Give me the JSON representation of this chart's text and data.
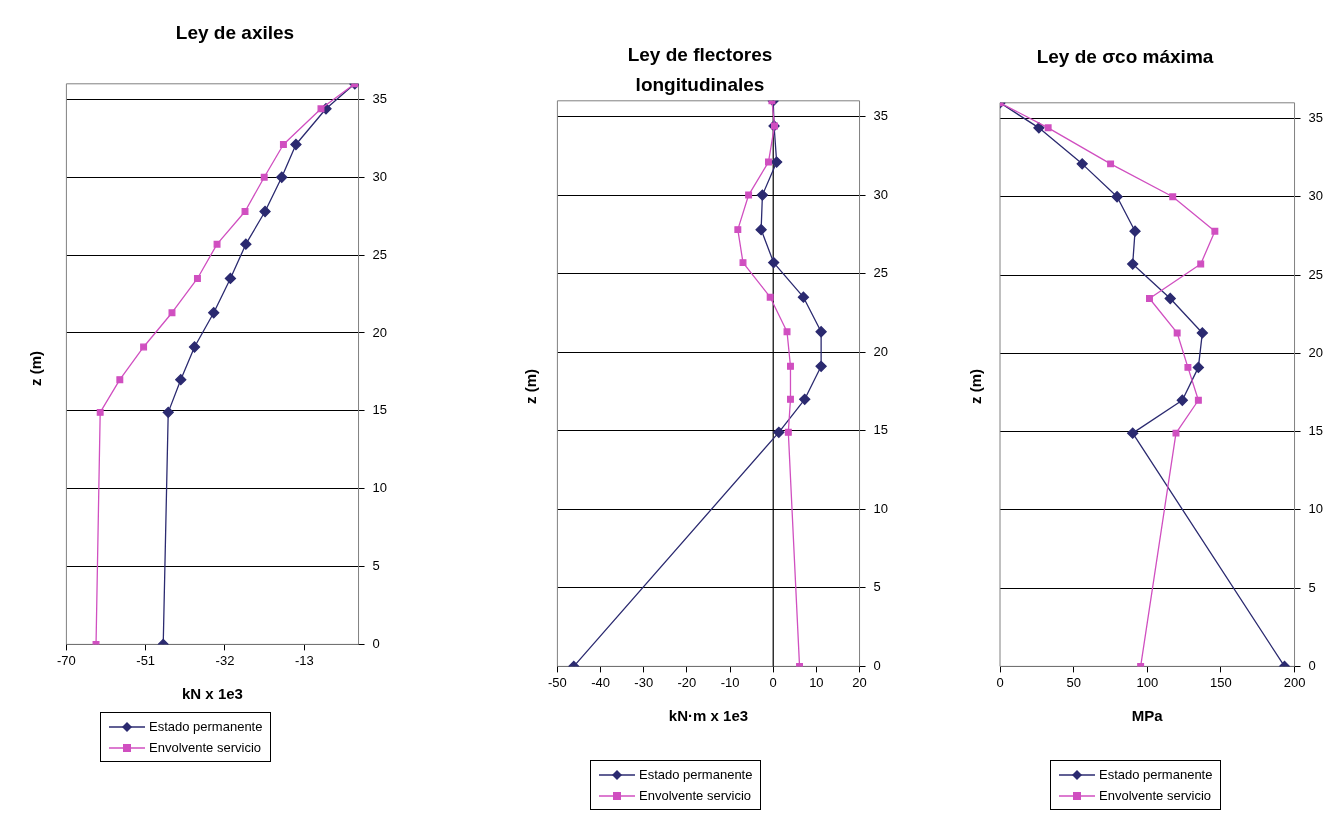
{
  "chart_data": [
    {
      "type": "line",
      "title": "Ley de axiles",
      "xlabel": "kN x 1e3",
      "ylabel": "z (m)",
      "xlim": [
        -70,
        0
      ],
      "xticks": [
        -70,
        -51,
        -32,
        -13
      ],
      "ylim": [
        0,
        36
      ],
      "yticks": [
        0,
        5,
        10,
        15,
        20,
        25,
        30,
        35
      ],
      "grid": "y",
      "legend": "bottom",
      "series": [
        {
          "name": "Estado permanente",
          "color": "#2b2a70",
          "marker": "diamond",
          "x": [
            -46.8,
            -45.6,
            -42.6,
            -39.3,
            -34.7,
            -30.7,
            -27.0,
            -22.4,
            -18.4,
            -15.0,
            -7.8,
            -0.9
          ],
          "values": [
            0,
            14.9,
            17,
            19.1,
            21.3,
            23.5,
            25.7,
            27.8,
            30,
            32.1,
            34.4,
            36
          ]
        },
        {
          "name": "Envolvente servicio",
          "color": "#d04fc0",
          "marker": "square",
          "x": [
            -62.9,
            -61.9,
            -57.2,
            -51.5,
            -44.7,
            -38.6,
            -33.9,
            -27.2,
            -22.6,
            -18.0,
            -9.0,
            -0.9
          ],
          "values": [
            0,
            14.9,
            17,
            19.1,
            21.3,
            23.5,
            25.7,
            27.8,
            30,
            32.1,
            34.4,
            36
          ]
        }
      ]
    },
    {
      "type": "line",
      "title": "Ley de flectores longitudinales",
      "xlabel": "kN·m x 1e3",
      "ylabel": "z (m)",
      "xlim": [
        -50,
        20
      ],
      "xticks": [
        -50,
        -40,
        -30,
        -20,
        -10,
        0,
        10,
        20
      ],
      "ylim": [
        0,
        36
      ],
      "yticks": [
        0,
        5,
        10,
        15,
        20,
        25,
        30,
        35
      ],
      "grid": "y",
      "legend": "bottom",
      "ref_lines": [
        {
          "axis": "x",
          "value": 0
        }
      ],
      "series": [
        {
          "name": "Estado permanente",
          "color": "#2b2a70",
          "marker": "diamond",
          "x": [
            -46.2,
            1.3,
            7.3,
            11.1,
            11.1,
            7.0,
            0.1,
            -2.8,
            -2.5,
            0.8,
            0.2,
            0
          ],
          "values": [
            0,
            14.9,
            17,
            19.1,
            21.3,
            23.5,
            25.7,
            27.8,
            30,
            32.1,
            34.4,
            36
          ]
        },
        {
          "name": "Envolvente servicio",
          "color": "#d04fc0",
          "marker": "square",
          "x": [
            6.1,
            3.5,
            4.0,
            4.0,
            3.2,
            -0.7,
            -7.0,
            -8.2,
            -5.7,
            -1.1,
            0.3,
            -0.3
          ],
          "values": [
            0,
            14.9,
            17,
            19.1,
            21.3,
            23.5,
            25.7,
            27.8,
            30,
            32.1,
            34.4,
            36
          ]
        }
      ]
    },
    {
      "type": "line",
      "title": "Ley de σco máxima",
      "xlabel": "MPa",
      "ylabel": "z (m)",
      "xlim": [
        0,
        200
      ],
      "xticks": [
        0,
        50,
        100,
        150,
        200
      ],
      "ylim": [
        0,
        36
      ],
      "yticks": [
        0,
        5,
        10,
        15,
        20,
        25,
        30,
        35
      ],
      "grid": "y",
      "legend": "bottom",
      "series": [
        {
          "name": "Estado permanente",
          "color": "#2b2a70",
          "marker": "diamond",
          "x": [
            193.2,
            90.1,
            123.8,
            134.7,
            137.4,
            115.6,
            90.1,
            91.7,
            79.5,
            55.8,
            26.4,
            0
          ],
          "values": [
            0,
            14.9,
            17,
            19.1,
            21.3,
            23.5,
            25.7,
            27.8,
            30,
            32.1,
            34.4,
            36
          ]
        },
        {
          "name": "Envolvente servicio",
          "color": "#d04fc0",
          "marker": "square",
          "x": [
            95.5,
            119.5,
            134.7,
            127.6,
            120.3,
            101.5,
            136.3,
            145.9,
            117.3,
            75.1,
            32.7,
            0
          ],
          "values": [
            0,
            14.9,
            17,
            19.1,
            21.3,
            23.5,
            25.7,
            27.8,
            30,
            32.1,
            34.4,
            36
          ]
        }
      ]
    }
  ]
}
